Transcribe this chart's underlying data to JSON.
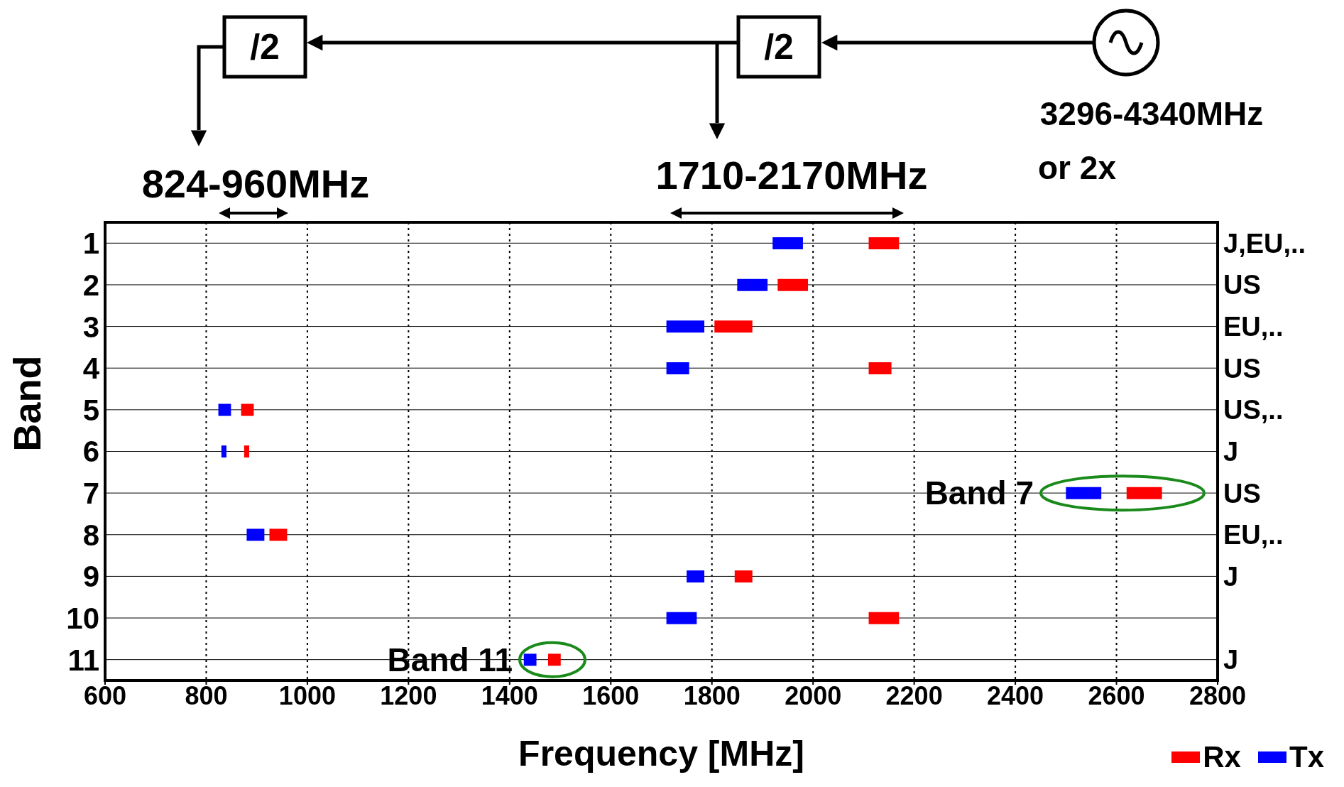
{
  "chart_data": {
    "type": "bar",
    "orientation": "horizontal",
    "xlabel": "Frequency [MHz]",
    "ylabel": "Band",
    "categories": [
      "1",
      "2",
      "3",
      "4",
      "5",
      "6",
      "7",
      "8",
      "9",
      "10",
      "11"
    ],
    "y2_categories": [
      "J,EU,..",
      "US",
      "EU,..",
      "US",
      "US,..",
      "J",
      "US",
      "EU,..",
      "J",
      null,
      "J"
    ],
    "series": [
      {
        "name": "Rx",
        "color": "#ff0000",
        "base": [
          2110,
          1930,
          1805,
          2110,
          869,
          875,
          2620,
          925,
          1845,
          2110,
          1476
        ],
        "values": [
          60,
          60,
          75,
          45,
          25,
          10,
          70,
          35,
          35,
          60,
          25
        ]
      },
      {
        "name": "Tx",
        "color": "#0000ff",
        "base": [
          1920,
          1850,
          1710,
          1710,
          824,
          830,
          2500,
          880,
          1750,
          1710,
          1428
        ],
        "values": [
          60,
          60,
          75,
          45,
          25,
          10,
          70,
          35,
          35,
          60,
          25
        ]
      }
    ],
    "xlim": [
      600,
      2800
    ],
    "xticks": [
      600,
      800,
      1000,
      1200,
      1400,
      1600,
      1800,
      2000,
      2200,
      2400,
      2600,
      2800
    ],
    "grid": true,
    "legend": "bottom right",
    "annotations": [
      "/2",
      "/2",
      "824-960MHz",
      "1710-2170MHz",
      "3296-4340MHz",
      "or 2x",
      "Band 7",
      "Band 11"
    ]
  }
}
